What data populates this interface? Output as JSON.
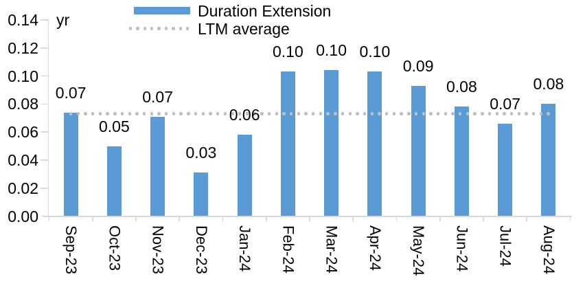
{
  "chart_data": {
    "type": "bar",
    "unit_label": "yr",
    "categories": [
      "Sep-23",
      "Oct-23",
      "Nov-23",
      "Dec-23",
      "Jan-24",
      "Feb-24",
      "Mar-24",
      "Apr-24",
      "May-24",
      "Jun-24",
      "Jul-24",
      "Aug-24"
    ],
    "series": [
      {
        "name": "Duration Extension",
        "values": [
          0.074,
          0.05,
          0.071,
          0.031,
          0.058,
          0.103,
          0.104,
          0.103,
          0.093,
          0.078,
          0.066,
          0.08
        ],
        "data_labels": [
          "0.07",
          "0.05",
          "0.07",
          "0.03",
          "0.06",
          "0.10",
          "0.10",
          "0.10",
          "0.09",
          "0.08",
          "0.07",
          "0.08"
        ]
      }
    ],
    "reference_line": {
      "name": "LTM average",
      "value": 0.073,
      "style": "dotted"
    },
    "ylim": [
      0,
      0.14
    ],
    "ytick_labels": [
      "0.14",
      "0.12",
      "0.10",
      "0.08",
      "0.06",
      "0.04",
      "0.02",
      "0.00"
    ],
    "grid": false,
    "legend_position": "top-center",
    "colors": {
      "bar": "#5B9BD5",
      "reference_line": "#BFBFBF",
      "axis": "#D9D9D9",
      "text": "#000000",
      "background": "#FFFFFF"
    }
  }
}
